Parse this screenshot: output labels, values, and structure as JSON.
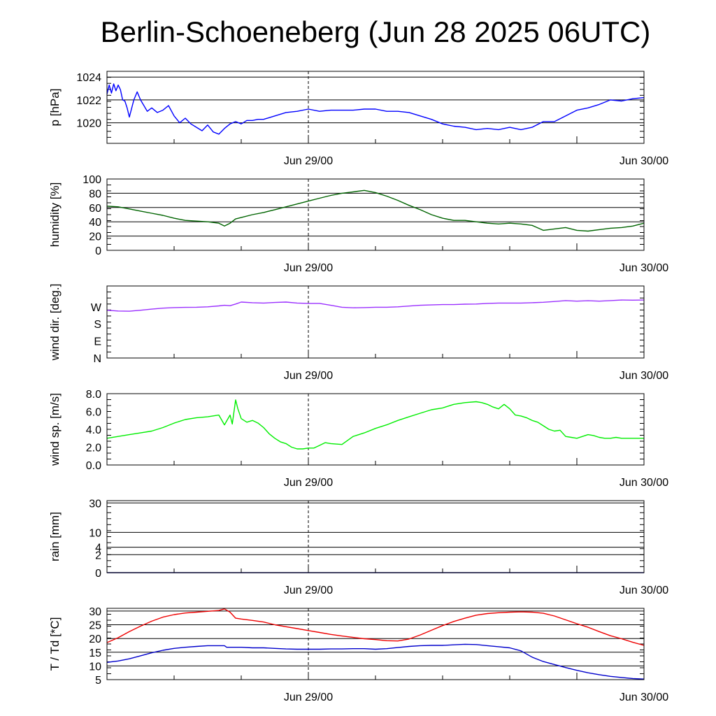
{
  "title": "Berlin-Schoeneberg (Jun 28 2025 06UTC)",
  "chart_data": [
    {
      "type": "line",
      "ylabel": "p [hPa]",
      "x_range": [
        6,
        54
      ],
      "ylim": [
        1018.2,
        1024.5
      ],
      "yticks": [
        1020,
        1022,
        1024
      ],
      "ytick_labels": [
        "1020",
        "1022",
        "1024"
      ],
      "xtick_labels": [
        "Jun 29/00",
        "Jun 30/00"
      ],
      "grid": true,
      "series": [
        {
          "color": "#0000ff",
          "x": [
            6,
            6.2,
            6.4,
            6.6,
            6.8,
            7,
            7.2,
            7.4,
            7.6,
            7.8,
            8,
            8.4,
            8.7,
            9,
            9.3,
            9.6,
            10,
            10.5,
            11,
            11.5,
            12,
            12.5,
            13,
            13.5,
            14,
            14.5,
            15,
            15.5,
            16,
            16.5,
            17,
            17.5,
            18,
            18.5,
            19,
            19.5,
            20,
            21,
            22,
            23,
            24,
            25,
            26,
            27,
            28,
            29,
            30,
            31,
            32,
            33,
            34,
            35,
            36,
            37,
            38,
            39,
            40,
            41,
            42,
            43,
            44,
            45,
            46,
            47,
            48,
            49,
            50,
            51,
            52,
            53,
            54
          ],
          "y": [
            1022.5,
            1023.3,
            1022.6,
            1023.4,
            1022.8,
            1023.3,
            1022.9,
            1022.0,
            1021.9,
            1021.3,
            1020.5,
            1022.0,
            1022.7,
            1022.0,
            1021.5,
            1021.0,
            1021.3,
            1020.9,
            1021.1,
            1021.5,
            1020.6,
            1020.0,
            1020.4,
            1019.9,
            1019.6,
            1019.3,
            1019.8,
            1019.2,
            1019.0,
            1019.5,
            1019.9,
            1020.1,
            1019.9,
            1020.2,
            1020.2,
            1020.3,
            1020.3,
            1020.6,
            1020.9,
            1021.0,
            1021.2,
            1021.0,
            1021.1,
            1021.1,
            1021.1,
            1021.2,
            1021.2,
            1021.0,
            1021.0,
            1020.9,
            1020.6,
            1020.3,
            1019.9,
            1019.7,
            1019.6,
            1019.4,
            1019.5,
            1019.4,
            1019.6,
            1019.4,
            1019.6,
            1020.1,
            1020.1,
            1020.6,
            1021.1,
            1021.3,
            1021.6,
            1022.0,
            1021.9,
            1022.1,
            1022.2
          ]
        }
      ]
    },
    {
      "type": "line",
      "ylabel": "humidity [%]",
      "x_range": [
        6,
        54
      ],
      "ylim": [
        0,
        100
      ],
      "yticks": [
        0,
        20,
        40,
        60,
        80,
        100
      ],
      "ytick_labels": [
        "0",
        "20",
        "40",
        "60",
        "80",
        "100"
      ],
      "xtick_labels": [
        "Jun 29/00",
        "Jun 30/00"
      ],
      "grid": true,
      "series": [
        {
          "color": "#006400",
          "x": [
            6,
            7,
            8,
            9,
            10,
            11,
            12,
            13,
            14,
            15,
            16,
            16.5,
            17,
            17.5,
            18,
            19,
            20,
            21,
            22,
            23,
            24,
            25,
            26,
            27,
            28,
            29,
            30,
            31,
            32,
            33,
            34,
            35,
            36,
            37,
            38,
            39,
            40,
            41,
            42,
            43,
            44,
            45,
            46,
            47,
            48,
            49,
            50,
            51,
            52,
            53,
            54
          ],
          "y": [
            62,
            61,
            58,
            55,
            52,
            49,
            45,
            42,
            41,
            40,
            38,
            34,
            38,
            44,
            46,
            50,
            53,
            57,
            61,
            65,
            69,
            73,
            77,
            80,
            82,
            84,
            81,
            76,
            70,
            63,
            57,
            50,
            45,
            42,
            42,
            40,
            38,
            37,
            38,
            37,
            35,
            28,
            30,
            32,
            28,
            27,
            29,
            31,
            32,
            34,
            38
          ]
        }
      ]
    },
    {
      "type": "line",
      "ylabel": "wind dir. [deg.]",
      "x_range": [
        6,
        54
      ],
      "ylim": [
        0,
        380
      ],
      "yticks": [
        0,
        90,
        180,
        270
      ],
      "ytick_labels": [
        "N",
        "E",
        "S",
        "W"
      ],
      "xtick_labels": [
        "Jun 29/00",
        "Jun 30/00"
      ],
      "grid": false,
      "series": [
        {
          "color": "#9b30ff",
          "x": [
            6,
            7,
            8,
            9,
            10,
            11,
            12,
            13,
            14,
            15,
            16,
            16.5,
            17,
            17.5,
            18,
            19,
            20,
            21,
            22,
            23,
            24,
            25,
            26,
            27,
            28,
            29,
            30,
            31,
            32,
            33,
            34,
            35,
            36,
            37,
            38,
            39,
            40,
            41,
            42,
            43,
            44,
            45,
            46,
            47,
            48,
            49,
            50,
            51,
            52,
            53,
            54
          ],
          "y": [
            252,
            248,
            247,
            252,
            258,
            263,
            266,
            267,
            268,
            270,
            275,
            278,
            276,
            285,
            295,
            292,
            290,
            293,
            295,
            290,
            288,
            288,
            278,
            268,
            265,
            266,
            268,
            268,
            270,
            274,
            278,
            280,
            282,
            282,
            284,
            285,
            288,
            290,
            290,
            290,
            292,
            294,
            298,
            303,
            300,
            302,
            300,
            303,
            306,
            305,
            306
          ]
        }
      ]
    },
    {
      "type": "line",
      "ylabel": "wind sp. [m/s]",
      "x_range": [
        6,
        54
      ],
      "ylim": [
        0,
        8.0
      ],
      "yticks": [
        0,
        2,
        4,
        6,
        8
      ],
      "ytick_labels": [
        "0.0",
        "2.0",
        "4.0",
        "6.0",
        "8.0"
      ],
      "xtick_labels": [
        "Jun 29/00",
        "Jun 30/00"
      ],
      "grid": false,
      "series": [
        {
          "color": "#00ee00",
          "x": [
            6,
            7,
            8,
            9,
            10,
            11,
            12,
            13,
            14,
            15,
            16,
            16.5,
            17,
            17.2,
            17.5,
            17.7,
            18,
            18.5,
            19,
            19.5,
            20,
            20.5,
            21,
            21.5,
            22,
            22.5,
            23,
            23.5,
            24,
            24.5,
            25,
            25.5,
            26,
            27,
            28,
            29,
            30,
            31,
            32,
            33,
            34,
            35,
            36,
            37,
            38,
            39,
            39.5,
            40,
            40.5,
            41,
            41.5,
            42,
            42.5,
            43,
            43.5,
            44,
            44.5,
            45,
            45.5,
            46,
            46.5,
            47,
            47.5,
            48,
            48.5,
            49,
            49.5,
            50,
            50.5,
            51,
            51.5,
            52,
            52.5,
            53,
            53.5,
            54
          ],
          "y": [
            3.0,
            3.2,
            3.4,
            3.6,
            3.8,
            4.2,
            4.7,
            5.1,
            5.3,
            5.4,
            5.6,
            4.5,
            5.6,
            4.6,
            7.3,
            6.3,
            5.2,
            4.8,
            5.0,
            4.7,
            4.2,
            3.5,
            3.0,
            2.6,
            2.4,
            2.0,
            1.8,
            1.8,
            1.9,
            1.9,
            2.2,
            2.5,
            2.4,
            2.3,
            3.2,
            3.6,
            4.1,
            4.5,
            5.0,
            5.4,
            5.8,
            6.2,
            6.4,
            6.8,
            7.0,
            7.1,
            7.0,
            6.8,
            6.5,
            6.3,
            6.8,
            6.3,
            5.6,
            5.5,
            5.3,
            5.0,
            4.8,
            4.4,
            4.0,
            3.8,
            3.9,
            3.2,
            3.1,
            3.0,
            3.2,
            3.4,
            3.3,
            3.1,
            3.0,
            3.0,
            3.1,
            3.0,
            3.0,
            3.0,
            3.0,
            3.0
          ]
        }
      ]
    },
    {
      "type": "line",
      "ylabel": "rain [mm]",
      "x_range": [
        6,
        54
      ],
      "ylim": [
        0,
        32
      ],
      "yscale": "sqrt",
      "yticks": [
        0,
        2,
        4,
        10,
        30
      ],
      "ytick_labels": [
        "0",
        "2",
        "4",
        "10",
        "30"
      ],
      "xtick_labels": [
        "Jun 29/00",
        "Jun 30/00"
      ],
      "grid": true,
      "series": [
        {
          "color": "#000080",
          "x": [
            6,
            54
          ],
          "y": [
            0,
            0
          ]
        }
      ]
    },
    {
      "type": "line",
      "ylabel": "T / Td [*C]",
      "x_range": [
        6,
        54
      ],
      "ylim": [
        5,
        31
      ],
      "yticks": [
        5,
        10,
        15,
        20,
        25,
        30
      ],
      "ytick_labels": [
        "5",
        "10",
        "15",
        "20",
        "25",
        "30"
      ],
      "xtick_labels": [
        "Jun 29/00",
        "Jun 30/00"
      ],
      "grid": true,
      "series": [
        {
          "color": "#ee0000",
          "x": [
            6,
            7,
            8,
            9,
            10,
            11,
            12,
            13,
            14,
            15,
            16,
            16.5,
            17,
            17.5,
            18,
            19,
            20,
            21,
            22,
            23,
            24,
            25,
            26,
            27,
            28,
            29,
            30,
            31,
            32,
            33,
            34,
            35,
            36,
            37,
            38,
            39,
            40,
            41,
            42,
            43,
            44,
            45,
            46,
            47,
            48,
            49,
            50,
            51,
            52,
            53,
            54
          ],
          "y": [
            18.5,
            20.3,
            22.5,
            24.5,
            26.3,
            27.8,
            28.7,
            29.3,
            29.6,
            29.9,
            30.2,
            30.8,
            29.6,
            27.4,
            27.1,
            26.6,
            26.0,
            25.0,
            24.3,
            23.6,
            22.9,
            22.2,
            21.5,
            20.9,
            20.4,
            19.9,
            19.6,
            19.2,
            19.1,
            19.8,
            21.3,
            23.0,
            24.7,
            26.2,
            27.4,
            28.5,
            29.1,
            29.4,
            29.6,
            29.7,
            29.6,
            29.2,
            28.2,
            26.8,
            25.4,
            24.1,
            22.5,
            21.0,
            19.9,
            18.6,
            17.5
          ]
        },
        {
          "color": "#0000cc",
          "x": [
            6,
            7,
            8,
            9,
            10,
            11,
            12,
            13,
            14,
            15,
            16,
            16.5,
            16.7,
            17,
            18,
            19,
            20,
            21,
            22,
            23,
            24,
            25,
            26,
            27,
            28,
            29,
            30,
            31,
            32,
            33,
            34,
            35,
            36,
            37,
            38,
            39,
            40,
            41,
            42,
            43,
            44,
            45,
            46,
            47,
            48,
            49,
            50,
            51,
            52,
            53,
            54
          ],
          "y": [
            11.3,
            11.8,
            12.6,
            13.7,
            14.8,
            15.7,
            16.4,
            16.8,
            17.1,
            17.4,
            17.4,
            17.4,
            16.8,
            16.8,
            16.8,
            16.6,
            16.6,
            16.4,
            16.2,
            16.1,
            16.1,
            16.1,
            16.2,
            16.2,
            16.3,
            16.3,
            16.1,
            16.3,
            16.7,
            17.1,
            17.4,
            17.5,
            17.5,
            17.7,
            17.9,
            17.8,
            17.4,
            17.0,
            16.6,
            15.5,
            13.2,
            11.6,
            10.5,
            9.4,
            8.4,
            7.5,
            6.8,
            6.2,
            5.8,
            5.4,
            5.2
          ]
        }
      ]
    }
  ]
}
